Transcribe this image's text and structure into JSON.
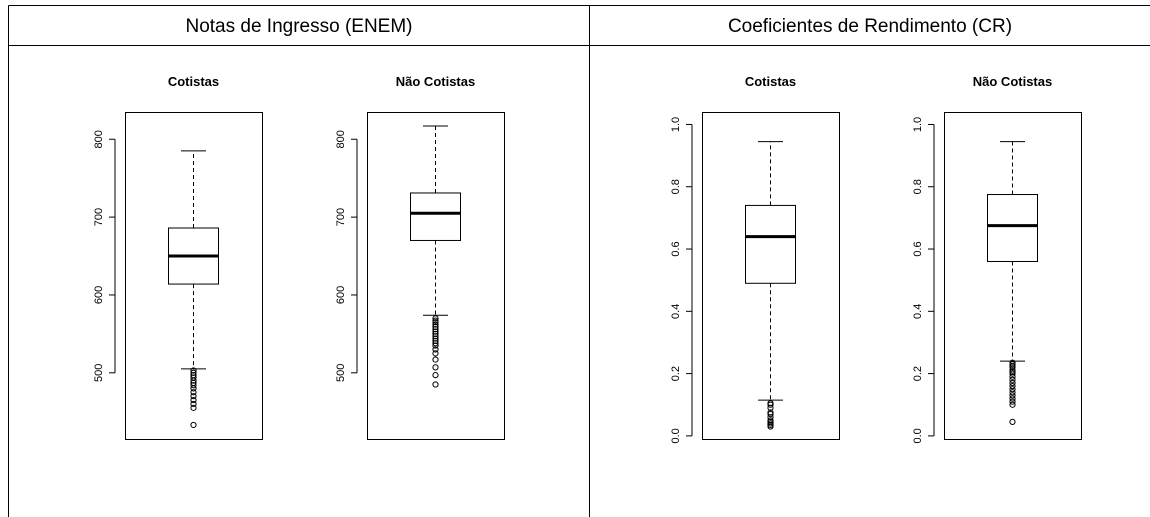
{
  "table": {
    "headers": [
      "Notas de Ingresso (ENEM)",
      "Coeficientes de Rendimento (CR)"
    ]
  },
  "chart_data": [
    {
      "type": "box",
      "title": "Cotistas",
      "group": "Notas de Ingresso (ENEM)",
      "ylim": [
        415,
        835
      ],
      "yticks": [
        500,
        600,
        700,
        800
      ],
      "tick_labels": [
        "500",
        "600",
        "700",
        "800"
      ],
      "box": {
        "whisker_low": 505,
        "q1": 614,
        "median": 650,
        "q3": 686,
        "whisker_high": 785
      },
      "outliers": [
        503,
        500,
        497,
        494,
        490,
        487,
        484,
        480,
        475,
        470,
        465,
        460,
        455,
        433
      ]
    },
    {
      "type": "box",
      "title": "Não Cotistas",
      "group": "Notas de Ingresso (ENEM)",
      "ylim": [
        415,
        835
      ],
      "yticks": [
        500,
        600,
        700,
        800
      ],
      "tick_labels": [
        "500",
        "600",
        "700",
        "800"
      ],
      "box": {
        "whisker_low": 574,
        "q1": 670,
        "median": 705,
        "q3": 731,
        "whisker_high": 817
      },
      "outliers": [
        570,
        567,
        565,
        562,
        559,
        556,
        553,
        550,
        547,
        544,
        541,
        538,
        535,
        530,
        525,
        517,
        507,
        497,
        485
      ]
    },
    {
      "type": "box",
      "title": "Cotistas",
      "group": "Coeficientes de Rendimento (CR)",
      "ylim": [
        -0.01,
        1.04
      ],
      "yticks": [
        0.0,
        0.2,
        0.4,
        0.6,
        0.8,
        1.0
      ],
      "tick_labels": [
        "0.0",
        "0.2",
        "0.4",
        "0.6",
        "0.8",
        "1.0"
      ],
      "box": {
        "whisker_low": 0.115,
        "q1": 0.49,
        "median": 0.64,
        "q3": 0.74,
        "whisker_high": 0.945
      },
      "outliers": [
        0.105,
        0.1,
        0.09,
        0.075,
        0.07,
        0.06,
        0.05,
        0.045,
        0.04,
        0.035,
        0.03
      ]
    },
    {
      "type": "box",
      "title": "Não Cotistas",
      "group": "Coeficientes de Rendimento (CR)",
      "ylim": [
        -0.01,
        1.04
      ],
      "yticks": [
        0.0,
        0.2,
        0.4,
        0.6,
        0.8,
        1.0
      ],
      "tick_labels": [
        "0.0",
        "0.2",
        "0.4",
        "0.6",
        "0.8",
        "1.0"
      ],
      "box": {
        "whisker_low": 0.24,
        "q1": 0.56,
        "median": 0.675,
        "q3": 0.775,
        "whisker_high": 0.945
      },
      "outliers": [
        0.235,
        0.23,
        0.225,
        0.22,
        0.21,
        0.205,
        0.2,
        0.19,
        0.18,
        0.17,
        0.16,
        0.15,
        0.14,
        0.13,
        0.12,
        0.11,
        0.1,
        0.045
      ]
    }
  ]
}
